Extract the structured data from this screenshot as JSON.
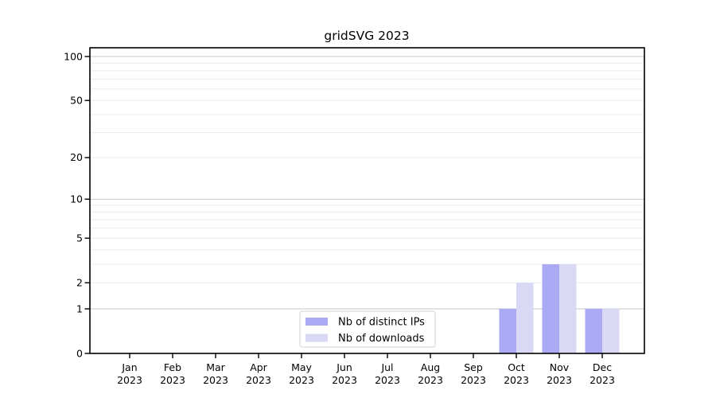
{
  "title": "gridSVG 2023",
  "chart_data": {
    "type": "bar",
    "title": "gridSVG 2023",
    "categories": [
      "Jan",
      "Feb",
      "Mar",
      "Apr",
      "May",
      "Jun",
      "Jul",
      "Aug",
      "Sep",
      "Oct",
      "Nov",
      "Dec"
    ],
    "category_year": "2023",
    "series": [
      {
        "name": "Nb of distinct IPs",
        "color": "#a9a9f4",
        "values": [
          0,
          0,
          0,
          0,
          0,
          0,
          0,
          0,
          0,
          1,
          3,
          1
        ]
      },
      {
        "name": "Nb of downloads",
        "color": "#d9d9f6",
        "values": [
          0,
          0,
          0,
          0,
          0,
          0,
          0,
          0,
          0,
          2,
          3,
          1
        ]
      }
    ],
    "xlabel": "",
    "ylabel": "",
    "yscale": "log1p",
    "ylim": [
      0,
      115
    ],
    "yticks": [
      0,
      1,
      2,
      5,
      10,
      20,
      50,
      100
    ],
    "grid_values_major": [
      1,
      10,
      100
    ],
    "grid_values_minor": [
      2,
      3,
      4,
      5,
      6,
      7,
      8,
      9,
      20,
      30,
      40,
      50,
      60,
      70,
      80,
      90
    ],
    "grid": true,
    "legend_position": "inside-bottom-center",
    "colors": {
      "background": "#ffffff",
      "spine": "#000000",
      "grid_major": "#c6c6c6",
      "grid_minor": "#ececec",
      "tick": "#000000",
      "legend_border": "#d2d2d2"
    }
  }
}
